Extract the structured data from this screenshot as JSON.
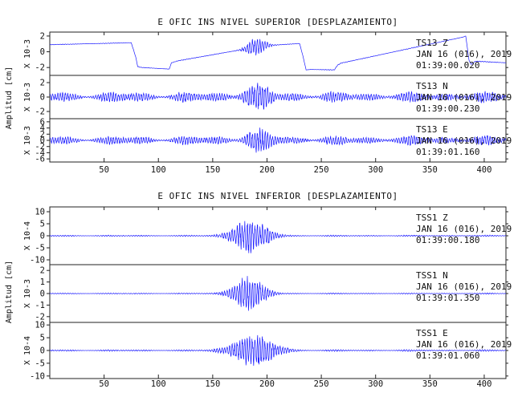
{
  "chart_data": [
    {
      "type": "line",
      "title": "E OFIC INS NIVEL SUPERIOR [DESPLAZAMIENTO]",
      "ylabel": "Amplitud [cm]",
      "xlim": [
        0,
        420
      ],
      "x_ticks": [
        "50",
        "100",
        "150",
        "200",
        "250",
        "300",
        "350",
        "400"
      ],
      "line_color": "#1a1aff",
      "panels": [
        {
          "name": "TS13 Z",
          "info": [
            "TS13   Z",
            "JAN 16 (016), 2019",
            "01:39:00.020"
          ],
          "scale_label": "X 10-3",
          "ylim": [
            -3,
            2.5
          ],
          "y_ticks": [
            "2",
            "0",
            "-2"
          ],
          "points": [
            [
              0,
              0.9
            ],
            [
              75,
              1.15
            ],
            [
              79,
              -0.6
            ],
            [
              81,
              -1.9
            ],
            [
              85,
              -2.0
            ],
            [
              110,
              -2.2
            ],
            [
              112,
              -1.4
            ],
            [
              118,
              -1.15
            ],
            [
              180,
              0.35
            ],
            [
              190,
              0.7
            ],
            [
              230,
              1.05
            ],
            [
              233,
              -0.5
            ],
            [
              236,
              -2.3
            ],
            [
              240,
              -2.25
            ],
            [
              262,
              -2.3
            ],
            [
              265,
              -1.7
            ],
            [
              268,
              -1.45
            ],
            [
              380,
              1.85
            ],
            [
              383,
              2.0
            ],
            [
              386,
              -1.1
            ],
            [
              388,
              -1.6
            ],
            [
              392,
              -1.2
            ],
            [
              420,
              -1.4
            ]
          ],
          "burst_center": 190,
          "burst_width": 10,
          "burst_amp": 1.2,
          "base_noise": 0.05
        },
        {
          "name": "TS13 N",
          "info": [
            "TS13   N",
            "JAN 16 (016), 2019",
            "01:39:00.230"
          ],
          "scale_label": "X 10-3",
          "ylim": [
            -3,
            3
          ],
          "y_ticks": [
            "2",
            "0",
            "-2"
          ],
          "points": [
            [
              0,
              0
            ],
            [
              420,
              0
            ]
          ],
          "burst_center": 190,
          "burst_width": 12,
          "burst_amp": 1.5,
          "base_noise": 0.9
        },
        {
          "name": "TS13 E",
          "info": [
            "TS13   E",
            "JAN 16 (016), 2019",
            "01:39:01.160"
          ],
          "scale_label": "X 10-3",
          "ylim": [
            -7,
            7
          ],
          "y_ticks": [
            "6",
            "4",
            "2",
            "0",
            "-2",
            "-4",
            "-6"
          ],
          "points": [
            [
              0,
              0
            ],
            [
              420,
              0
            ]
          ],
          "burst_center": 192,
          "burst_width": 12,
          "burst_amp": 3.0,
          "base_noise": 1.8
        }
      ]
    },
    {
      "type": "line",
      "title": "E OFIC INS NIVEL INFERIOR [DESPLAZAMIENTO]",
      "ylabel": "Amplitud [cm]",
      "xlim": [
        0,
        420
      ],
      "x_ticks": [
        "50",
        "100",
        "150",
        "200",
        "250",
        "300",
        "350",
        "400"
      ],
      "line_color": "#1a1aff",
      "panels": [
        {
          "name": "TSS1 Z",
          "info": [
            "TSS1   Z",
            "JAN 16 (016), 2019",
            "01:39:00.180"
          ],
          "scale_label": "X 10-4",
          "ylim": [
            -12,
            12
          ],
          "y_ticks": [
            "10",
            "5",
            "0",
            "-5",
            "-10"
          ],
          "points": [
            [
              0,
              0
            ],
            [
              420,
              0
            ]
          ],
          "burst_center": 185,
          "burst_width": 18,
          "burst_amp": 7.5,
          "base_noise": 0.35
        },
        {
          "name": "TSS1 N",
          "info": [
            "TSS1   N",
            "JAN 16 (016), 2019",
            "01:39:01.350"
          ],
          "scale_label": "X 10-3",
          "ylim": [
            -2.5,
            2.5
          ],
          "y_ticks": [
            "2",
            "1",
            "0",
            "-1",
            "-2"
          ],
          "points": [
            [
              0,
              0
            ],
            [
              420,
              0
            ]
          ],
          "burst_center": 183,
          "burst_width": 16,
          "burst_amp": 1.6,
          "base_noise": 0.06
        },
        {
          "name": "TSS1 E",
          "info": [
            "TSS1   E",
            "JAN 16 (016), 2019",
            "01:39:01.060"
          ],
          "scale_label": "X 10-4",
          "ylim": [
            -11,
            11
          ],
          "y_ticks": [
            "10",
            "5",
            "0",
            "-5",
            "-10"
          ],
          "points": [
            [
              0,
              0
            ],
            [
              420,
              0
            ]
          ],
          "burst_center": 188,
          "burst_width": 22,
          "burst_amp": 6.5,
          "base_noise": 0.4
        }
      ]
    }
  ]
}
